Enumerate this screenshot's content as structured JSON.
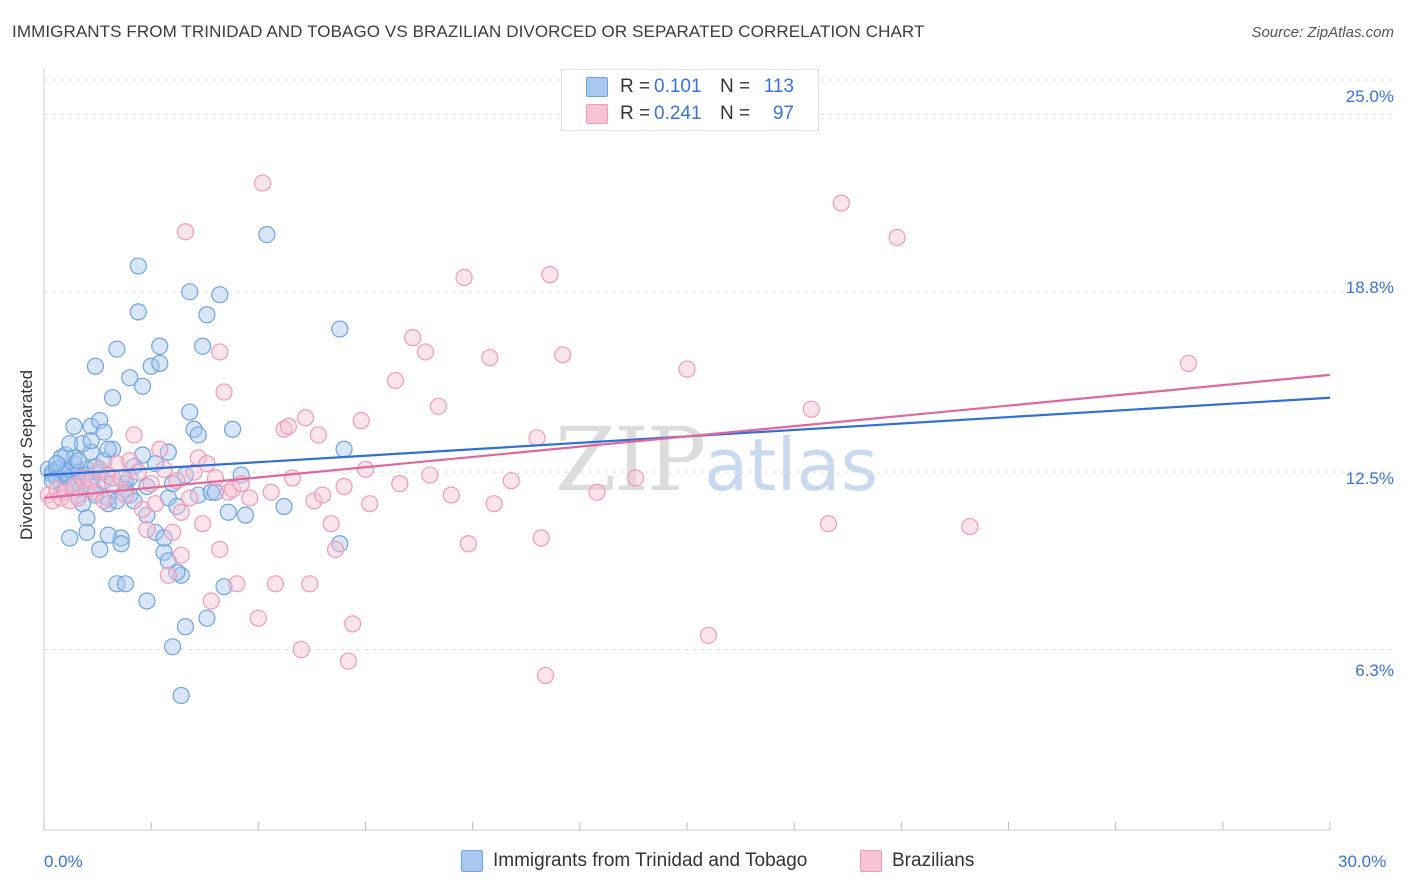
{
  "header": {
    "title": "IMMIGRANTS FROM TRINIDAD AND TOBAGO VS BRAZILIAN DIVORCED OR SEPARATED CORRELATION CHART",
    "source": "Source: ZipAtlas.com"
  },
  "watermark": {
    "zip": "ZIP",
    "atlas": "atlas"
  },
  "legend": {
    "rows": [
      {
        "r_label": "R =",
        "r_value": "0.101",
        "n_label": "N =",
        "n_value": "113"
      },
      {
        "r_label": "R =",
        "r_value": "0.241",
        "n_label": "N =",
        "n_value": "97"
      }
    ]
  },
  "colors": {
    "series1": "#6fa3e0",
    "series1_fill": "#a9c8ef",
    "series1_line": "#2f6fd6",
    "series2": "#ef9ab6",
    "series2_fill": "#f6c4d4",
    "series2_line": "#e0679a",
    "tick_text": "#3a72d8",
    "grid": "#dddddd"
  },
  "chart_data": {
    "type": "scatter",
    "title": "IMMIGRANTS FROM TRINIDAD AND TOBAGO VS BRAZILIAN DIVORCED OR SEPARATED CORRELATION CHART",
    "xlabel": "",
    "ylabel": "Divorced or Separated",
    "xlim": [
      0,
      30
    ],
    "ylim": [
      0,
      26.2
    ],
    "x_tick_labels": [
      "0.0%",
      "30.0%"
    ],
    "y_ticks": [
      6.3,
      12.5,
      18.8,
      25.0
    ],
    "y_tick_labels": [
      "6.3%",
      "12.5%",
      "18.8%",
      "25.0%"
    ],
    "grid": "horizontal dashed",
    "legend_position": "top-center",
    "series": [
      {
        "name": "Immigrants from Trinidad and Tobago",
        "r": 0.101,
        "n": 113,
        "trend": {
          "x0": 0,
          "y0": 12.4,
          "x1": 30,
          "y1": 15.1
        },
        "points": [
          [
            0.1,
            12.6
          ],
          [
            0.2,
            12.4
          ],
          [
            0.2,
            12.5
          ],
          [
            0.3,
            12.3
          ],
          [
            0.3,
            12.6
          ],
          [
            0.4,
            12.1
          ],
          [
            0.4,
            12.7
          ],
          [
            0.5,
            12.5
          ],
          [
            0.5,
            12.4
          ],
          [
            0.6,
            12.3
          ],
          [
            0.6,
            12.6
          ],
          [
            0.7,
            12.8
          ],
          [
            0.7,
            13.0
          ],
          [
            0.8,
            12.4
          ],
          [
            0.8,
            12.5
          ],
          [
            0.9,
            12.2
          ],
          [
            1.0,
            12.6
          ],
          [
            1.0,
            12.4
          ],
          [
            1.1,
            12.0
          ],
          [
            1.2,
            12.7
          ],
          [
            1.2,
            11.8
          ],
          [
            1.3,
            12.5
          ],
          [
            1.4,
            12.2
          ],
          [
            1.5,
            11.6
          ],
          [
            0.4,
            13.0
          ],
          [
            0.5,
            13.1
          ],
          [
            0.6,
            13.5
          ],
          [
            0.7,
            14.1
          ],
          [
            0.8,
            11.7
          ],
          [
            0.9,
            11.4
          ],
          [
            1.0,
            10.9
          ],
          [
            1.1,
            13.2
          ],
          [
            1.1,
            14.1
          ],
          [
            1.3,
            14.3
          ],
          [
            1.2,
            16.2
          ],
          [
            1.4,
            13.9
          ],
          [
            1.5,
            11.4
          ],
          [
            1.6,
            15.1
          ],
          [
            1.6,
            13.3
          ],
          [
            1.7,
            11.5
          ],
          [
            1.8,
            10.2
          ],
          [
            1.9,
            12.1
          ],
          [
            1.7,
            16.8
          ],
          [
            1.5,
            10.3
          ],
          [
            2.0,
            11.7
          ],
          [
            2.0,
            15.8
          ],
          [
            2.1,
            12.7
          ],
          [
            2.2,
            19.7
          ],
          [
            2.2,
            18.1
          ],
          [
            2.3,
            15.5
          ],
          [
            2.4,
            8.0
          ],
          [
            2.4,
            11.0
          ],
          [
            2.5,
            16.2
          ],
          [
            2.6,
            10.4
          ],
          [
            2.6,
            12.8
          ],
          [
            2.7,
            16.9
          ],
          [
            2.7,
            16.3
          ],
          [
            2.8,
            9.7
          ],
          [
            2.9,
            13.2
          ],
          [
            2.9,
            11.6
          ],
          [
            3.0,
            6.4
          ],
          [
            3.1,
            11.3
          ],
          [
            3.2,
            8.9
          ],
          [
            3.3,
            12.4
          ],
          [
            3.4,
            14.6
          ],
          [
            3.4,
            18.8
          ],
          [
            3.5,
            14.0
          ],
          [
            3.6,
            11.7
          ],
          [
            3.7,
            16.9
          ],
          [
            3.8,
            18.0
          ],
          [
            3.8,
            7.4
          ],
          [
            4.1,
            18.7
          ],
          [
            4.2,
            8.5
          ],
          [
            4.3,
            11.1
          ],
          [
            4.4,
            14.0
          ],
          [
            4.6,
            12.4
          ],
          [
            4.7,
            11.0
          ],
          [
            5.2,
            20.8
          ],
          [
            5.6,
            11.3
          ],
          [
            6.9,
            17.5
          ],
          [
            7.0,
            13.3
          ],
          [
            6.9,
            10.0
          ],
          [
            3.2,
            4.7
          ],
          [
            3.3,
            7.1
          ],
          [
            3.1,
            9.0
          ],
          [
            2.9,
            9.4
          ],
          [
            2.4,
            12.0
          ],
          [
            0.6,
            10.2
          ],
          [
            1.0,
            10.4
          ],
          [
            1.3,
            9.8
          ],
          [
            1.7,
            8.6
          ],
          [
            1.9,
            8.6
          ],
          [
            0.8,
            12.9
          ],
          [
            0.3,
            12.8
          ],
          [
            0.2,
            12.2
          ],
          [
            1.4,
            12.9
          ],
          [
            1.8,
            10.0
          ],
          [
            2.0,
            12.3
          ],
          [
            3.6,
            13.8
          ],
          [
            3.9,
            11.8
          ],
          [
            2.1,
            11.5
          ],
          [
            0.9,
            13.5
          ],
          [
            1.5,
            13.3
          ],
          [
            1.2,
            11.7
          ],
          [
            0.5,
            11.9
          ],
          [
            1.6,
            12.3
          ],
          [
            2.3,
            13.1
          ],
          [
            2.8,
            10.2
          ],
          [
            3.0,
            12.1
          ],
          [
            0.7,
            12.1
          ],
          [
            1.9,
            11.9
          ],
          [
            4.0,
            11.8
          ],
          [
            1.1,
            13.6
          ]
        ]
      },
      {
        "name": "Brazilians",
        "r": 0.241,
        "n": 97,
        "trend": {
          "x0": 0,
          "y0": 11.6,
          "x1": 30,
          "y1": 15.9
        },
        "points": [
          [
            0.1,
            11.7
          ],
          [
            0.2,
            11.5
          ],
          [
            0.3,
            11.9
          ],
          [
            0.4,
            11.6
          ],
          [
            0.5,
            11.8
          ],
          [
            0.6,
            11.5
          ],
          [
            0.7,
            12.0
          ],
          [
            0.8,
            11.6
          ],
          [
            0.9,
            12.3
          ],
          [
            1.0,
            11.9
          ],
          [
            1.1,
            12.2
          ],
          [
            1.2,
            11.8
          ],
          [
            1.3,
            12.6
          ],
          [
            1.4,
            11.5
          ],
          [
            1.5,
            12.4
          ],
          [
            1.6,
            12.1
          ],
          [
            1.7,
            12.8
          ],
          [
            1.8,
            12.3
          ],
          [
            1.9,
            11.7
          ],
          [
            2.0,
            12.9
          ],
          [
            2.1,
            13.8
          ],
          [
            2.2,
            12.5
          ],
          [
            2.3,
            11.2
          ],
          [
            2.4,
            10.5
          ],
          [
            2.5,
            12.1
          ],
          [
            2.6,
            11.4
          ],
          [
            2.7,
            13.3
          ],
          [
            2.8,
            12.6
          ],
          [
            2.9,
            8.9
          ],
          [
            3.0,
            10.4
          ],
          [
            3.1,
            12.2
          ],
          [
            3.2,
            9.6
          ],
          [
            3.3,
            20.9
          ],
          [
            3.4,
            11.6
          ],
          [
            3.5,
            12.5
          ],
          [
            3.6,
            13.0
          ],
          [
            3.7,
            10.7
          ],
          [
            3.8,
            12.8
          ],
          [
            3.9,
            8.0
          ],
          [
            4.0,
            12.3
          ],
          [
            4.1,
            9.8
          ],
          [
            4.2,
            15.3
          ],
          [
            4.3,
            11.8
          ],
          [
            4.4,
            11.9
          ],
          [
            4.5,
            8.6
          ],
          [
            4.6,
            12.1
          ],
          [
            4.8,
            11.6
          ],
          [
            5.0,
            7.4
          ],
          [
            5.1,
            22.6
          ],
          [
            5.3,
            11.8
          ],
          [
            5.4,
            8.6
          ],
          [
            5.6,
            14.0
          ],
          [
            5.7,
            14.1
          ],
          [
            5.8,
            12.3
          ],
          [
            6.0,
            6.3
          ],
          [
            6.1,
            14.4
          ],
          [
            6.2,
            8.6
          ],
          [
            6.3,
            11.5
          ],
          [
            6.4,
            13.8
          ],
          [
            6.5,
            11.7
          ],
          [
            6.7,
            10.7
          ],
          [
            6.8,
            9.8
          ],
          [
            7.0,
            12.0
          ],
          [
            7.1,
            5.9
          ],
          [
            7.2,
            7.2
          ],
          [
            7.4,
            14.3
          ],
          [
            7.5,
            12.6
          ],
          [
            7.6,
            11.4
          ],
          [
            8.2,
            15.7
          ],
          [
            8.3,
            12.1
          ],
          [
            8.6,
            17.2
          ],
          [
            8.9,
            16.7
          ],
          [
            9.0,
            12.4
          ],
          [
            9.2,
            14.8
          ],
          [
            9.5,
            11.7
          ],
          [
            9.8,
            19.3
          ],
          [
            9.9,
            10.0
          ],
          [
            10.4,
            16.5
          ],
          [
            10.5,
            11.4
          ],
          [
            10.9,
            12.2
          ],
          [
            11.5,
            13.7
          ],
          [
            11.6,
            10.2
          ],
          [
            11.7,
            5.4
          ],
          [
            11.8,
            19.4
          ],
          [
            12.1,
            16.6
          ],
          [
            12.9,
            11.8
          ],
          [
            13.8,
            12.3
          ],
          [
            15.0,
            16.1
          ],
          [
            15.5,
            6.8
          ],
          [
            17.9,
            14.7
          ],
          [
            18.3,
            10.7
          ],
          [
            18.6,
            21.9
          ],
          [
            19.9,
            20.7
          ],
          [
            21.6,
            10.6
          ],
          [
            26.7,
            16.3
          ],
          [
            4.1,
            16.7
          ],
          [
            3.2,
            11.1
          ]
        ]
      }
    ]
  },
  "bottom_legend": {
    "items": [
      {
        "label": "Immigrants from Trinidad and Tobago"
      },
      {
        "label": "Brazilians"
      }
    ]
  }
}
